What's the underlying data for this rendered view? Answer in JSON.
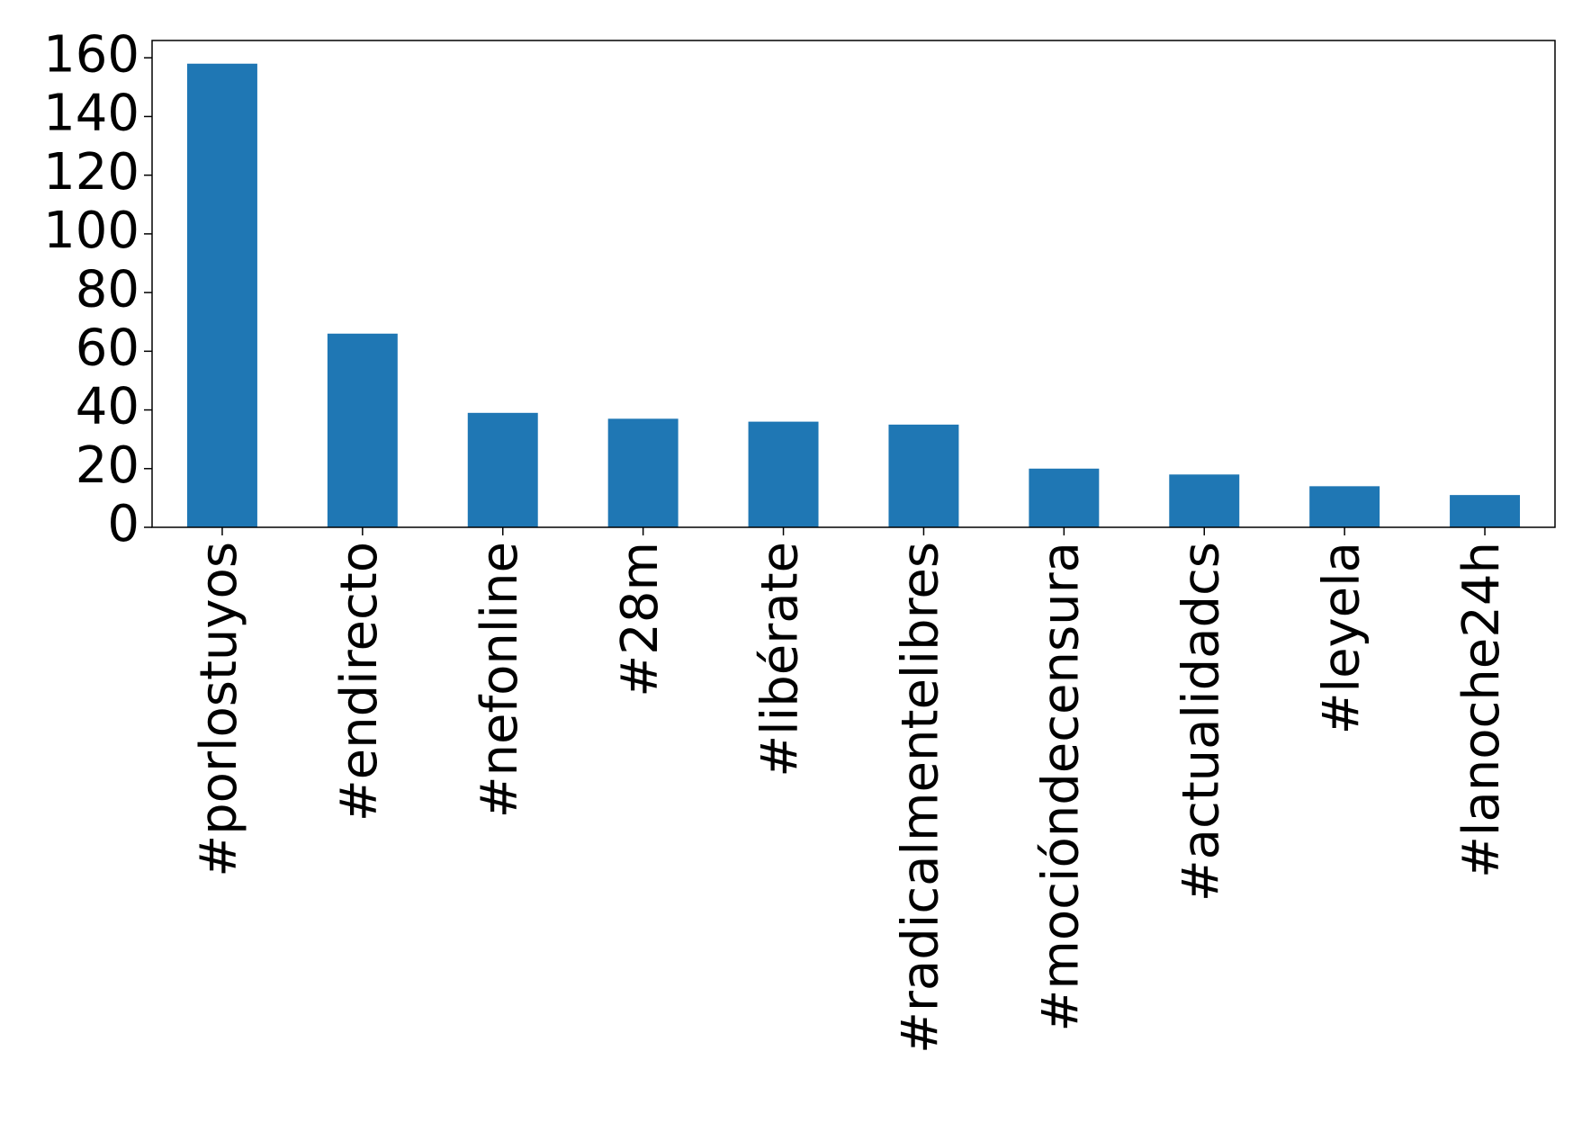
{
  "chart_data": {
    "type": "bar",
    "categories": [
      "#porlostuyos",
      "#endirecto",
      "#nefonline",
      "#28m",
      "#libérate",
      "#radicalmentelibres",
      "#mocióndecensura",
      "#actualidadcs",
      "#leyela",
      "#lanoche24h"
    ],
    "values": [
      158,
      66,
      39,
      37,
      36,
      35,
      20,
      18,
      14,
      11
    ],
    "color": "#1f77b4",
    "ylim": [
      0,
      165.9
    ],
    "yticks": [
      0,
      20,
      40,
      60,
      80,
      100,
      120,
      140,
      160
    ],
    "grid": false
  }
}
